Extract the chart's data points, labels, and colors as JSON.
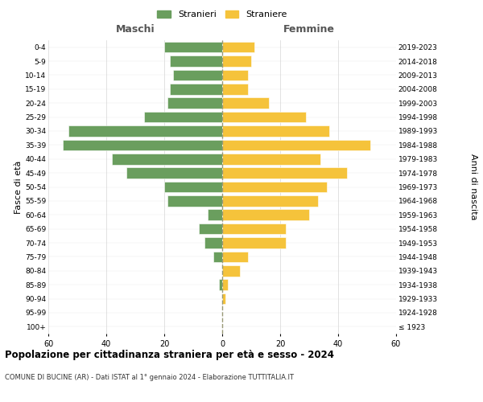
{
  "age_groups": [
    "0-4",
    "5-9",
    "10-14",
    "15-19",
    "20-24",
    "25-29",
    "30-34",
    "35-39",
    "40-44",
    "45-49",
    "50-54",
    "55-59",
    "60-64",
    "65-69",
    "70-74",
    "75-79",
    "80-84",
    "85-89",
    "90-94",
    "95-99",
    "100+"
  ],
  "birth_years": [
    "2019-2023",
    "2014-2018",
    "2009-2013",
    "2004-2008",
    "1999-2003",
    "1994-1998",
    "1989-1993",
    "1984-1988",
    "1979-1983",
    "1974-1978",
    "1969-1973",
    "1964-1968",
    "1959-1963",
    "1954-1958",
    "1949-1953",
    "1944-1948",
    "1939-1943",
    "1934-1938",
    "1929-1933",
    "1924-1928",
    "≤ 1923"
  ],
  "males": [
    20,
    18,
    17,
    18,
    19,
    27,
    53,
    55,
    38,
    33,
    20,
    19,
    5,
    8,
    6,
    3,
    0,
    1,
    0,
    0,
    0
  ],
  "females": [
    11,
    10,
    9,
    9,
    16,
    29,
    37,
    51,
    34,
    43,
    36,
    33,
    30,
    22,
    22,
    9,
    6,
    2,
    1,
    0,
    0
  ],
  "male_color": "#6a9e5e",
  "female_color": "#f5c33b",
  "background_color": "#ffffff",
  "grid_color": "#cccccc",
  "title": "Popolazione per cittadinanza straniera per età e sesso - 2024",
  "subtitle": "COMUNE DI BUCINE (AR) - Dati ISTAT al 1° gennaio 2024 - Elaborazione TUTTITALIA.IT",
  "xlabel_left": "Maschi",
  "xlabel_right": "Femmine",
  "ylabel_left": "Fasce di età",
  "ylabel_right": "Anni di nascita",
  "legend_stranieri": "Stranieri",
  "legend_straniere": "Straniere",
  "xlim": 60,
  "dashed_line_color": "#999977"
}
